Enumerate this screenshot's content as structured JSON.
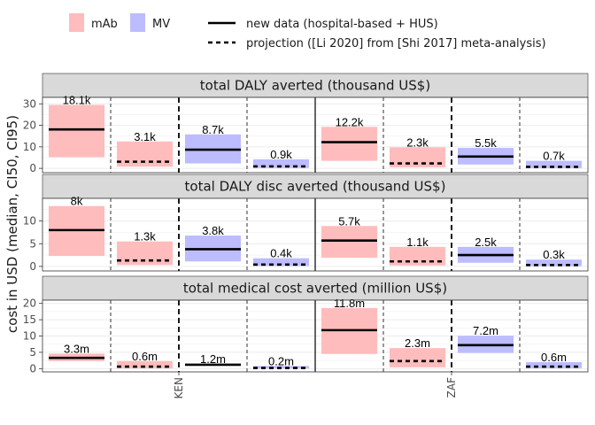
{
  "colors": {
    "mAb": "#ffbcbc",
    "MV": "#bcbcff",
    "median_line": "#000000",
    "strip_fill": "#d9d9d9",
    "grid": "#ebebeb"
  },
  "legend": {
    "fill_entries": [
      {
        "key": "mAb",
        "label": "mAb"
      },
      {
        "key": "MV",
        "label": "MV"
      }
    ],
    "line_entries": [
      {
        "linetype": "solid",
        "label": "new data (hospital-based + HUS)"
      },
      {
        "linetype": "dashed",
        "label": "projection ([Li 2020] from [Shi 2017] meta-analysis)"
      }
    ]
  },
  "y_axis_title": "cost in USD (median, CI50, CI95)",
  "chart_data": {
    "type": "bar",
    "countries": [
      "KEN",
      "ZAF"
    ],
    "slot_order": [
      {
        "intervention": "mAb",
        "source": "new data (hospital-based + HUS)"
      },
      {
        "intervention": "mAb",
        "source": "projection ([Li 2020] from [Shi 2017] meta-analysis)"
      },
      {
        "intervention": "MV",
        "source": "new data (hospital-based + HUS)"
      },
      {
        "intervention": "MV",
        "source": "projection ([Li 2020] from [Shi 2017] meta-analysis)"
      }
    ],
    "facets": [
      {
        "title": "total DALY averted (thousand US$)",
        "ylim": [
          -2,
          33
        ],
        "yticks": [
          0,
          10,
          20,
          30
        ],
        "countries": {
          "KEN": [
            {
              "median": 18.1,
              "lower": 5.2,
              "upper": 29.5,
              "label": "18.1k"
            },
            {
              "median": 3.1,
              "lower": 0.8,
              "upper": 12.5,
              "label": "3.1k"
            },
            {
              "median": 8.7,
              "lower": 2.3,
              "upper": 15.8,
              "label": "8.7k"
            },
            {
              "median": 0.9,
              "lower": 0.2,
              "upper": 4.2,
              "label": "0.9k"
            }
          ],
          "ZAF": [
            {
              "median": 12.2,
              "lower": 3.5,
              "upper": 19.3,
              "label": "12.2k"
            },
            {
              "median": 2.3,
              "lower": 0.5,
              "upper": 9.8,
              "label": "2.3k"
            },
            {
              "median": 5.5,
              "lower": 1.8,
              "upper": 9.5,
              "label": "5.5k"
            },
            {
              "median": 0.7,
              "lower": 0.1,
              "upper": 3.5,
              "label": "0.7k"
            }
          ]
        }
      },
      {
        "title": "total DALY disc averted (thousand US$)",
        "ylim": [
          -1,
          15
        ],
        "yticks": [
          0,
          5,
          10
        ],
        "countries": {
          "KEN": [
            {
              "median": 8.0,
              "lower": 2.3,
              "upper": 13.3,
              "label": "8k"
            },
            {
              "median": 1.3,
              "lower": 0.3,
              "upper": 5.5,
              "label": "1.3k"
            },
            {
              "median": 3.8,
              "lower": 1.1,
              "upper": 6.8,
              "label": "3.8k"
            },
            {
              "median": 0.4,
              "lower": 0.1,
              "upper": 1.8,
              "label": "0.4k"
            }
          ],
          "ZAF": [
            {
              "median": 5.7,
              "lower": 1.9,
              "upper": 8.9,
              "label": "5.7k"
            },
            {
              "median": 1.1,
              "lower": 0.2,
              "upper": 4.3,
              "label": "1.1k"
            },
            {
              "median": 2.5,
              "lower": 0.8,
              "upper": 4.3,
              "label": "2.5k"
            },
            {
              "median": 0.3,
              "lower": 0.05,
              "upper": 1.5,
              "label": "0.3k"
            }
          ]
        }
      },
      {
        "title": "total medical cost averted (million US$)",
        "ylim": [
          -1,
          21
        ],
        "yticks": [
          0,
          5,
          10,
          15,
          20
        ],
        "countries": {
          "KEN": [
            {
              "median": 3.3,
              "lower": 2.3,
              "upper": 4.6,
              "label": "3.3m"
            },
            {
              "median": 0.6,
              "lower": 0.1,
              "upper": 2.3,
              "label": "0.6m"
            },
            {
              "median": 1.2,
              "lower": 0.9,
              "upper": 1.5,
              "label": "1.2m"
            },
            {
              "median": 0.2,
              "lower": 0.02,
              "upper": 0.8,
              "label": "0.2m"
            }
          ],
          "ZAF": [
            {
              "median": 11.8,
              "lower": 4.5,
              "upper": 18.6,
              "label": "11.8m"
            },
            {
              "median": 2.3,
              "lower": 0.4,
              "upper": 6.3,
              "label": "2.3m"
            },
            {
              "median": 7.2,
              "lower": 4.8,
              "upper": 10.1,
              "label": "7.2m"
            },
            {
              "median": 0.6,
              "lower": 0.1,
              "upper": 2.0,
              "label": "0.6m"
            }
          ]
        }
      }
    ]
  }
}
